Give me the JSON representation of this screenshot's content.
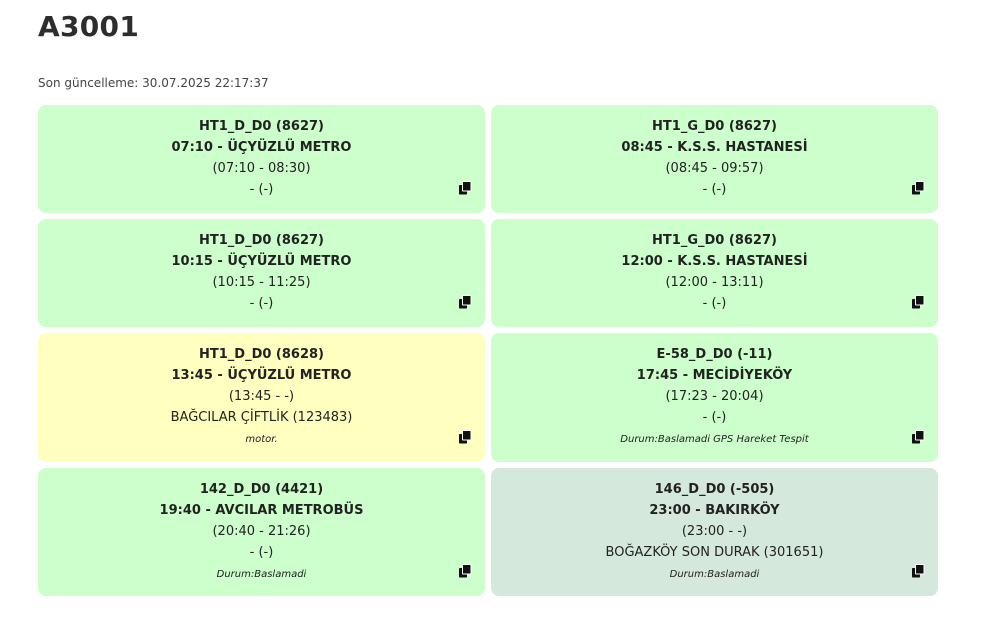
{
  "page": {
    "title": "A3001",
    "updated": "Son güncelleme: 30.07.2025 22:17:37"
  },
  "cards": [
    {
      "code": "HT1_D_D0 (8627)",
      "route": "07:10 - ÜÇYÜZLÜ METRO",
      "range": "(07:10 - 08:30)",
      "location": "- (-)",
      "note": "",
      "status_color": "#ccffcc",
      "icon": "copy-icon"
    },
    {
      "code": "HT1_G_D0 (8627)",
      "route": "08:45 - K.S.S. HASTANESİ",
      "range": "(08:45 - 09:57)",
      "location": "- (-)",
      "note": "",
      "status_color": "#ccffcc",
      "icon": "copy-icon"
    },
    {
      "code": "HT1_D_D0 (8627)",
      "route": "10:15 - ÜÇYÜZLÜ METRO",
      "range": "(10:15 - 11:25)",
      "location": "- (-)",
      "note": "",
      "status_color": "#ccffcc",
      "icon": "copy-icon"
    },
    {
      "code": "HT1_G_D0 (8627)",
      "route": "12:00 - K.S.S. HASTANESİ",
      "range": "(12:00 - 13:11)",
      "location": "- (-)",
      "note": "",
      "status_color": "#ccffcc",
      "icon": "copy-icon"
    },
    {
      "code": "HT1_D_D0 (8628)",
      "route": "13:45 - ÜÇYÜZLÜ METRO",
      "range": "(13:45 - -)",
      "location": "BAĞCILAR ÇİFTLİK (123483)",
      "note": "motor.",
      "status_color": "#ffffc0",
      "icon": "copy-icon"
    },
    {
      "code": "E-58_D_D0 (-11)",
      "route": "17:45 - MECİDİYEKÖY",
      "range": "(17:23 - 20:04)",
      "location": "- (-)",
      "note": "Durum:Baslamadi GPS Hareket Tespit",
      "status_color": "#ccffcc",
      "icon": "copy-icon"
    },
    {
      "code": "142_D_D0 (4421)",
      "route": "19:40 - AVCILAR METROBÜS",
      "range": "(20:40 - 21:26)",
      "location": "- (-)",
      "note": "Durum:Baslamadi",
      "status_color": "#ccffcc",
      "icon": "copy-icon"
    },
    {
      "code": "146_D_D0 (-505)",
      "route": "23:00 - BAKIRKÖY",
      "range": "(23:00 - -)",
      "location": "BOĞAZKÖY SON DURAK (301651)",
      "note": "Durum:Baslamadi",
      "status_color": "#d5e8dc",
      "icon": "copy-icon"
    }
  ]
}
